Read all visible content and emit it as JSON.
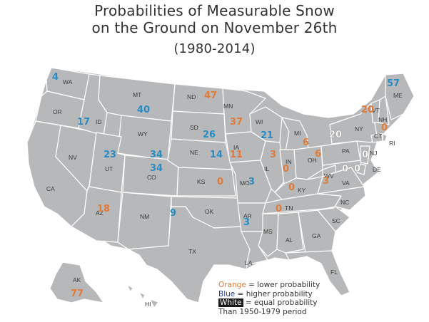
{
  "title": {
    "line1": "Probabilities of Measurable Snow",
    "line2": "on the Ground on November 26th",
    "line3": "(1980-2014)"
  },
  "colors": {
    "orange": "#e07b39",
    "blue": "#2b8cc4",
    "white": "#ffffff",
    "land": "#b6b8ba"
  },
  "states": {
    "WA": "WA",
    "OR": "OR",
    "CA": "CA",
    "NV": "NV",
    "ID": "ID",
    "MT": "MT",
    "WY": "WY",
    "UT": "UT",
    "AZ": "AZ",
    "CO": "CO",
    "NM": "NM",
    "ND": "ND",
    "SD": "SD",
    "NE": "NE",
    "KS": "KS",
    "OK": "OK",
    "TX": "TX",
    "MN": "MN",
    "IA": "IA",
    "MO": "MO",
    "AR": "AR",
    "LA": "LA",
    "WI": "WI",
    "IL": "IL",
    "MI": "MI",
    "IN": "IN",
    "OH": "OH",
    "KY": "KY",
    "TN": "TN",
    "MS": "MS",
    "AL": "AL",
    "GA": "GA",
    "FL": "FL",
    "SC": "SC",
    "NC": "NC",
    "VA": "VA",
    "WV": "WV",
    "PA": "PA",
    "NY": "NY",
    "NJ": "NJ",
    "DE": "DE",
    "CT": "CT",
    "RI": "RI",
    "NH": "NH",
    "VT": "VT",
    "ME": "ME",
    "AK": "AK",
    "HI": "HI"
  },
  "probabilities": {
    "WA": {
      "value": "4",
      "color": "blue"
    },
    "MT": {
      "value": "40",
      "color": "blue"
    },
    "ND": {
      "value": "47",
      "color": "orange"
    },
    "MN": {
      "value": "37",
      "color": "orange"
    },
    "ID": {
      "value": "17",
      "color": "blue"
    },
    "SD": {
      "value": "26",
      "color": "blue"
    },
    "WI": {
      "value": "21",
      "color": "blue"
    },
    "UT": {
      "value": "23",
      "color": "blue"
    },
    "WY": {
      "value": "34",
      "color": "blue"
    },
    "CO": {
      "value": "34",
      "color": "blue"
    },
    "NE": {
      "value": "14",
      "color": "blue"
    },
    "IA": {
      "value": "11",
      "color": "orange"
    },
    "KS": {
      "value": "0",
      "color": "orange"
    },
    "MO": {
      "value": "3",
      "color": "blue"
    },
    "IL": {
      "value": "3",
      "color": "orange"
    },
    "MI": {
      "value": "6",
      "color": "orange"
    },
    "IN": {
      "value": "0",
      "color": "orange"
    },
    "OH": {
      "value": "6",
      "color": "orange"
    },
    "KY": {
      "value": "0",
      "color": "orange"
    },
    "WV": {
      "value": "3",
      "color": "orange"
    },
    "PA": {
      "value": "20",
      "color": "white"
    },
    "NY": {
      "value": "20",
      "color": "orange"
    },
    "NH": {
      "value": "0",
      "color": "orange"
    },
    "ME": {
      "value": "57",
      "color": "blue"
    },
    "NJ": {
      "value": "0",
      "color": "white"
    },
    "MD": {
      "value": "0",
      "color": "white"
    },
    "DE": {
      "value": "0",
      "color": "white"
    },
    "AZ": {
      "value": "18",
      "color": "orange"
    },
    "NM": {
      "value": "9",
      "color": "blue"
    },
    "AR": {
      "value": "3",
      "color": "blue"
    },
    "TN": {
      "value": "0",
      "color": "orange"
    },
    "AK": {
      "value": "77",
      "color": "orange"
    }
  },
  "legend": {
    "orange_word": "Orange",
    "orange_text": " = lower probability",
    "blue_word": "Blue",
    "blue_text": " = higher probability",
    "white_word": "White",
    "white_text": " = equal probability",
    "footer": "Than 1950-1979 period"
  }
}
